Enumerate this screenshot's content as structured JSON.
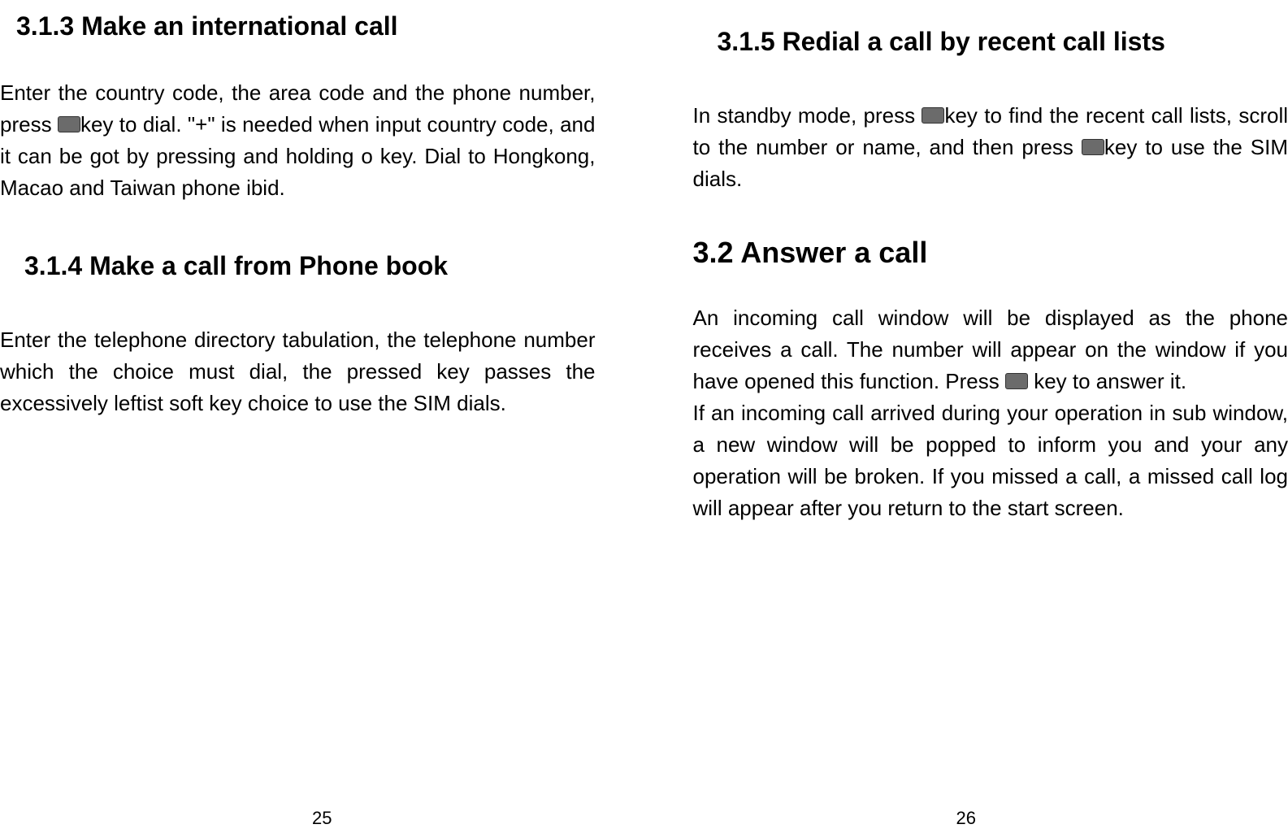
{
  "left_page": {
    "section_313_title": "3.1.3 Make an international call",
    "section_313_body_part1": "Enter the country code, the area code and the phone number, press ",
    "section_313_body_part2": "key to dial. \"+\" is needed when input country code, and it can be got by pressing and holding o key. Dial to Hongkong, Macao and Taiwan phone ibid.",
    "section_314_title": "3.1.4 Make a call from Phone book",
    "section_314_body": "Enter the telephone directory tabulation, the telephone number which the choice must dial, the pressed key passes the excessively leftist soft key choice to use the SIM dials.",
    "page_number": "25"
  },
  "right_page": {
    "section_315_title": "3.1.5 Redial a call by recent call lists",
    "section_315_body_part1": "In standby mode, press ",
    "section_315_body_part2": "key to find the recent call lists, scroll to the number or name, and then press ",
    "section_315_body_part3": "key to use the SIM dials.",
    "section_32_title": "3.2  Answer a call",
    "section_32_body1_part1": "An incoming call window will be displayed as the phone receives a call. The number will appear on the window if you have opened this function. Press ",
    "section_32_body1_part2": " key to answer it.",
    "section_32_body2": "If an incoming call arrived during your operation in sub window, a new window will be popped to inform you and your any operation will be broken. If you missed a call, a missed call log will appear after you return to the start screen.",
    "page_number": "26"
  },
  "colors": {
    "background": "#ffffff",
    "text": "#000000",
    "key_icon_bg": "#6b6b6b"
  },
  "typography": {
    "body_fontsize": 26,
    "heading3_fontsize": 32,
    "heading2_fontsize": 36,
    "pagenum_fontsize": 22
  }
}
